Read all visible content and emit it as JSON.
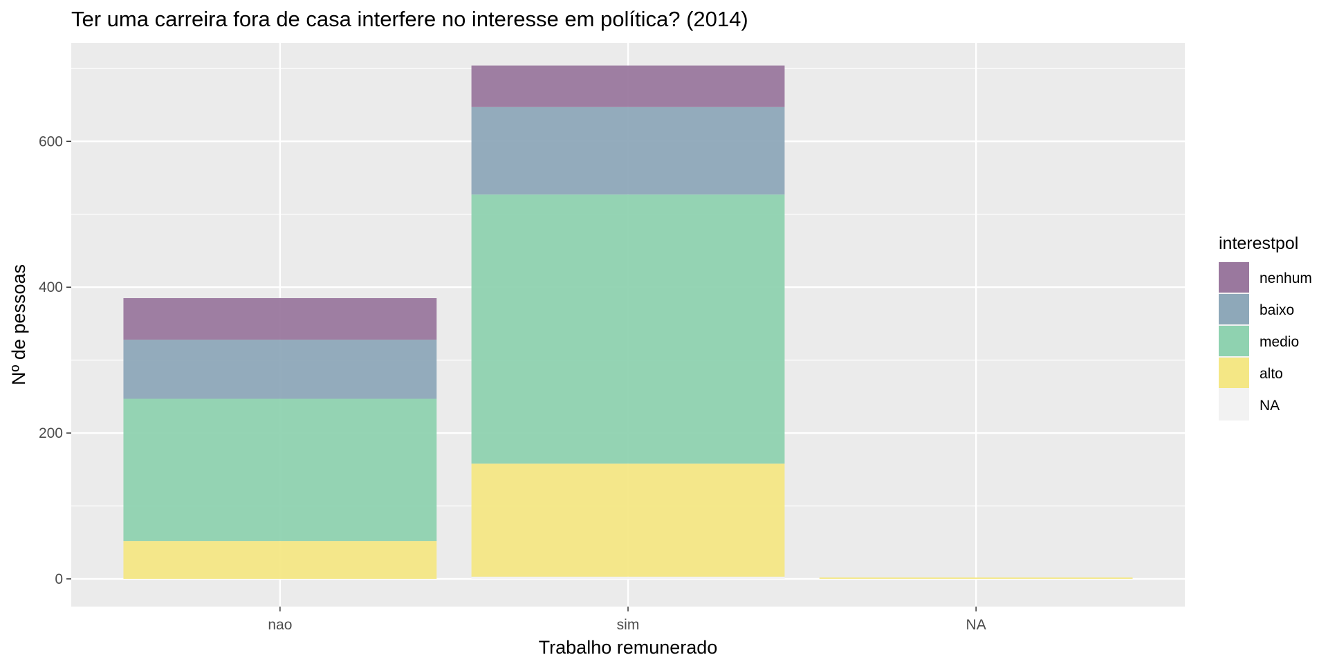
{
  "chart_data": {
    "type": "bar",
    "stacked": true,
    "title": "Ter uma carreira fora de casa interfere no interesse em política? (2014)",
    "xlabel": "Trabalho remunerado",
    "ylabel": "Nº de pessoas",
    "categories": [
      "nao",
      "sim",
      "NA"
    ],
    "ylim": [
      -38,
      735
    ],
    "yticks": [
      0,
      200,
      400,
      600
    ],
    "grid": true,
    "legend_title": "interestpol",
    "legend_position": "right",
    "series": [
      {
        "name": "NA",
        "color": "#f2f2f2",
        "values": [
          0,
          3,
          0
        ]
      },
      {
        "name": "alto",
        "color": "#f4e785",
        "values": [
          52,
          155,
          2
        ]
      },
      {
        "name": "medio",
        "color": "#8fd2b0",
        "values": [
          195,
          369,
          0
        ]
      },
      {
        "name": "baixo",
        "color": "#8ea8b9",
        "values": [
          81,
          120,
          0
        ]
      },
      {
        "name": "nenhum",
        "color": "#9a789e",
        "values": [
          57,
          57,
          0
        ]
      }
    ],
    "legend_order": [
      "nenhum",
      "baixo",
      "medio",
      "alto",
      "NA"
    ]
  }
}
